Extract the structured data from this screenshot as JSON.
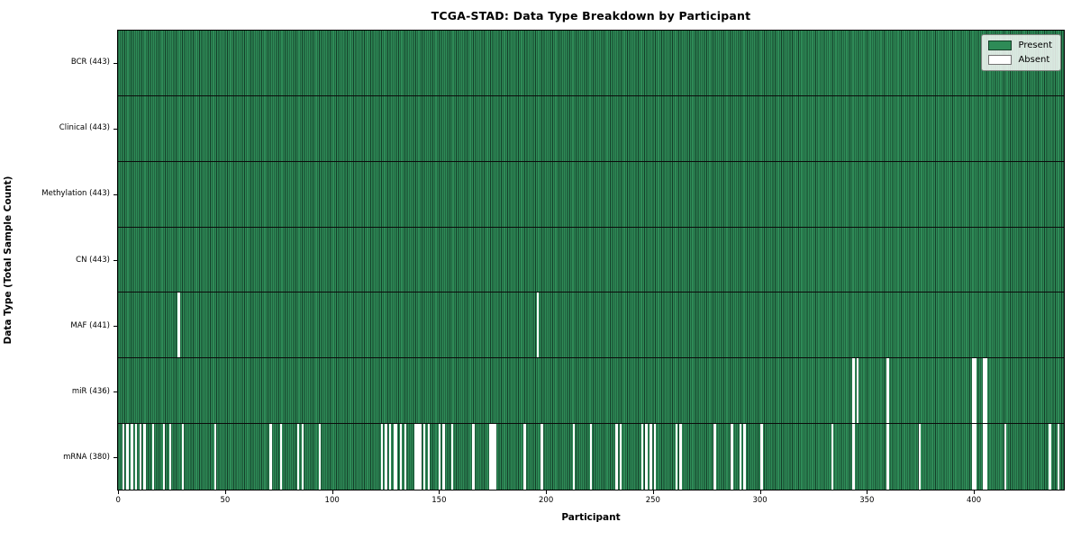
{
  "chart_data": {
    "type": "heatmap",
    "title": "TCGA-STAD: Data Type Breakdown by Participant",
    "xlabel": "Participant",
    "ylabel": "Data Type (Total Sample Count)",
    "n_participants": 443,
    "x_ticks": [
      0,
      50,
      100,
      150,
      200,
      250,
      300,
      350,
      400
    ],
    "grid": false,
    "colors": {
      "present": "#2e8b57",
      "present_edge": "#143f29",
      "absent": "#ffffff"
    },
    "legend": {
      "position": "upper right",
      "items": [
        {
          "label": "Present",
          "color": "#2e8b57"
        },
        {
          "label": "Absent",
          "color": "#ffffff"
        }
      ]
    },
    "rows": [
      {
        "label": "BCR (443)",
        "name": "BCR",
        "total": 443,
        "absent": []
      },
      {
        "label": "Clinical (443)",
        "name": "Clinical",
        "total": 443,
        "absent": []
      },
      {
        "label": "Methylation (443)",
        "name": "Methylation",
        "total": 443,
        "absent": []
      },
      {
        "label": "CN (443)",
        "name": "CN",
        "total": 443,
        "absent": []
      },
      {
        "label": "MAF (441)",
        "name": "MAF",
        "total": 441,
        "absent": [
          28,
          196
        ]
      },
      {
        "label": "miR (436)",
        "name": "miR",
        "total": 436,
        "absent": [
          344,
          346,
          360,
          400,
          401,
          405,
          406
        ]
      },
      {
        "label": "mRNA (380)",
        "name": "mRNA",
        "total": 380,
        "absent": [
          2,
          4,
          6,
          8,
          10,
          12,
          16,
          21,
          24,
          30,
          45,
          71,
          76,
          84,
          86,
          94,
          123,
          125,
          127,
          129,
          130,
          132,
          134,
          139,
          140,
          141,
          143,
          145,
          150,
          152,
          156,
          166,
          174,
          175,
          176,
          190,
          198,
          213,
          221,
          233,
          235,
          245,
          247,
          249,
          251,
          261,
          263,
          279,
          287,
          291,
          293,
          301,
          334,
          344,
          360,
          375,
          400,
          401,
          405,
          406,
          415,
          436,
          440
        ]
      }
    ]
  }
}
